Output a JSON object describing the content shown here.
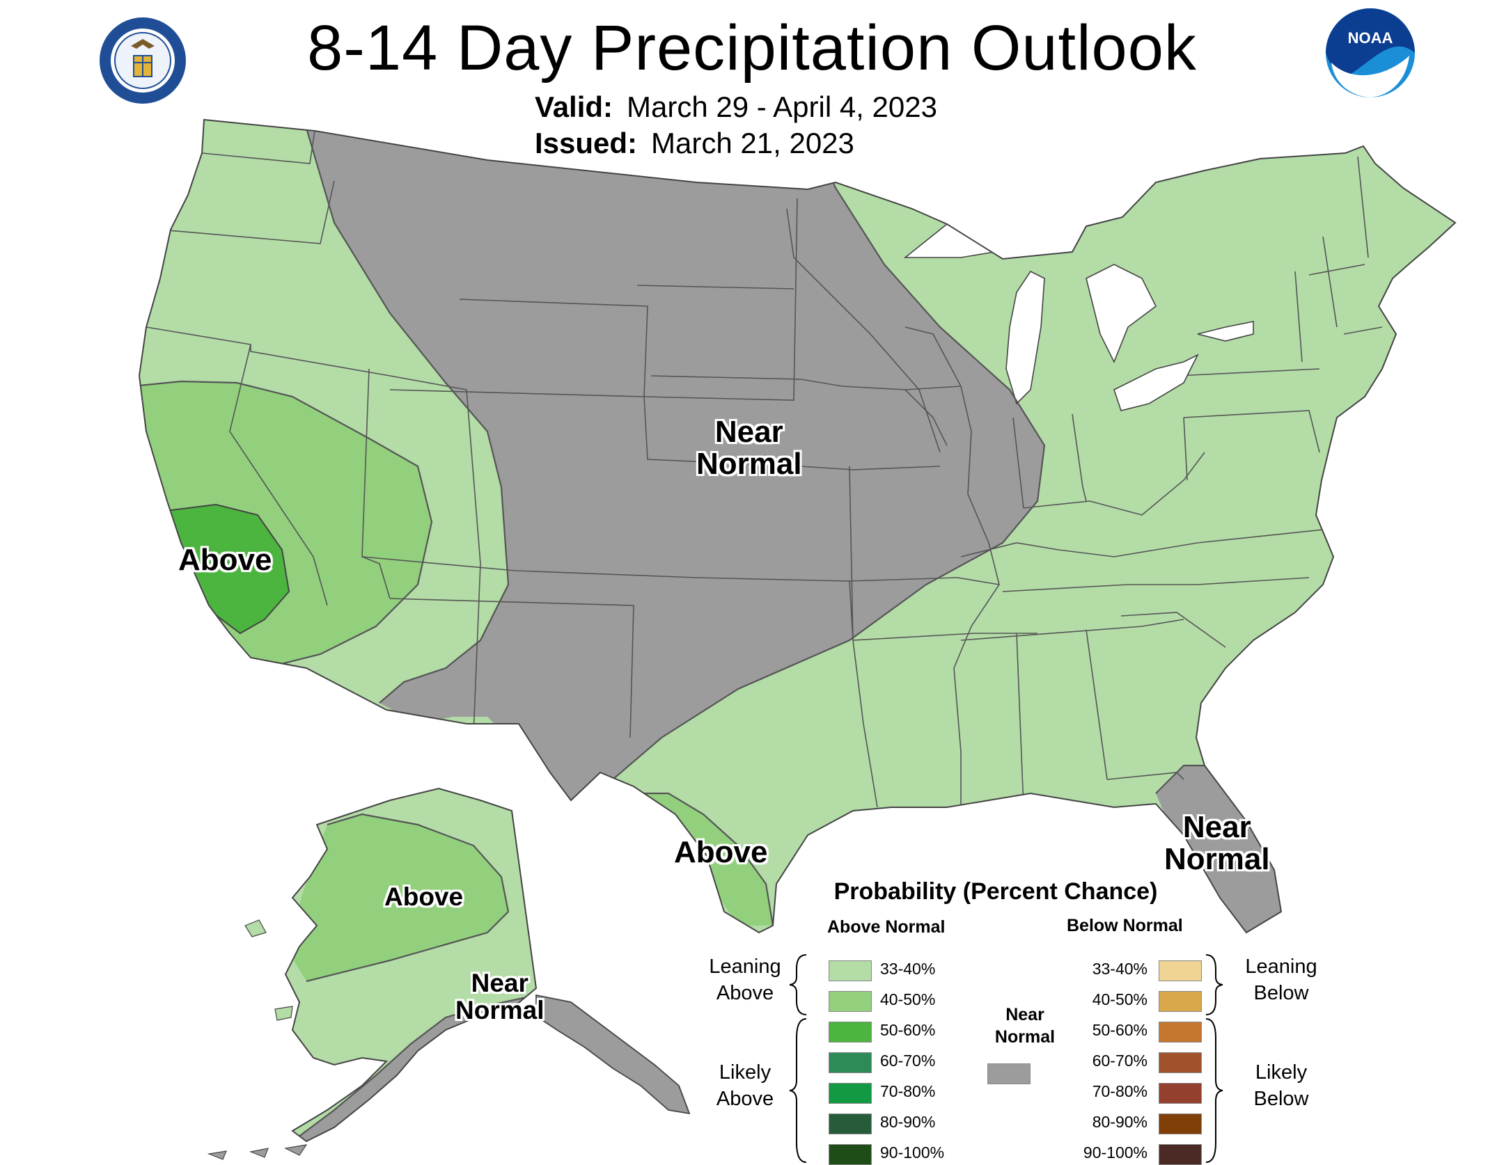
{
  "title": "8-14 Day Precipitation Outlook",
  "valid": {
    "label": "Valid:",
    "value": "March 29 - April 4, 2023"
  },
  "issued": {
    "label": "Issued:",
    "value": "March 21, 2023"
  },
  "logos": {
    "left": "department-of-commerce-seal",
    "right": "noaa-logo",
    "noaa_text": "NOAA"
  },
  "colors": {
    "leaning_above": "#b3dca7",
    "above_40_50": "#92d07d",
    "above_50_60": "#4cb53f",
    "near_normal": "#9c9c9c",
    "state_lines": "#555555",
    "lakes": "#ffffff"
  },
  "labels": {
    "conus_near_normal": [
      "Near",
      "Normal"
    ],
    "west_above": "Above",
    "texas_above": "Above",
    "florida_near_normal": [
      "Near",
      "Normal"
    ],
    "alaska_above": "Above",
    "alaska_near_normal": [
      "Near",
      "Normal"
    ]
  },
  "legend": {
    "title": "Probability (Percent Chance)",
    "above_header": "Above Normal",
    "below_header": "Below Normal",
    "near_label": [
      "Near",
      "Normal"
    ],
    "leaning_above": [
      "Leaning",
      "Above"
    ],
    "likely_above": [
      "Likely",
      "Above"
    ],
    "leaning_below": [
      "Leaning",
      "Below"
    ],
    "likely_below": [
      "Likely",
      "Below"
    ],
    "above_bins": [
      {
        "range": "33-40%",
        "color": "#b3dca7"
      },
      {
        "range": "40-50%",
        "color": "#92d07d"
      },
      {
        "range": "50-60%",
        "color": "#4cb53f"
      },
      {
        "range": "60-70%",
        "color": "#2e8b57"
      },
      {
        "range": "70-80%",
        "color": "#119a43"
      },
      {
        "range": "80-90%",
        "color": "#265c3a"
      },
      {
        "range": "90-100%",
        "color": "#1e4d17"
      }
    ],
    "near_color": "#9c9c9c",
    "below_bins": [
      {
        "range": "33-40%",
        "color": "#f0d493"
      },
      {
        "range": "40-50%",
        "color": "#d8a84a"
      },
      {
        "range": "50-60%",
        "color": "#c5762f"
      },
      {
        "range": "60-70%",
        "color": "#a0522d"
      },
      {
        "range": "70-80%",
        "color": "#93402e"
      },
      {
        "range": "80-90%",
        "color": "#7f3f06"
      },
      {
        "range": "90-100%",
        "color": "#4b2a26"
      }
    ]
  }
}
